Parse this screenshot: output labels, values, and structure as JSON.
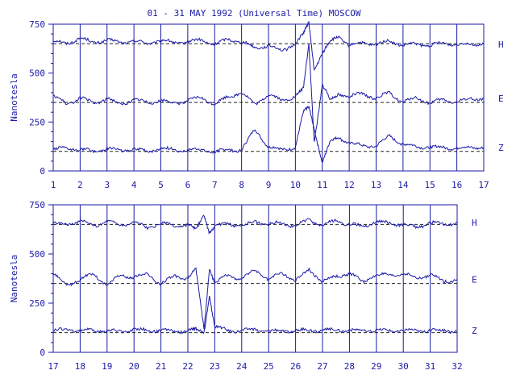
{
  "chart_data": [
    {
      "type": "line",
      "title": "01 - 31 MAY 1992 (Universal Time) MOSCOW",
      "ylabel": "Nanotesla",
      "ylim": [
        0,
        750
      ],
      "yticks": [
        "0",
        "250",
        "500",
        "750"
      ],
      "xlim": [
        1,
        17
      ],
      "xticks": [
        "1",
        "2",
        "3",
        "4",
        "5",
        "6",
        "7",
        "8",
        "9",
        "10",
        "11",
        "12",
        "13",
        "14",
        "15",
        "16",
        "17"
      ],
      "baselines": [
        650,
        350,
        100
      ],
      "series": [
        {
          "name": "H",
          "x": [
            1,
            1.5,
            2,
            2.5,
            3,
            3.5,
            4,
            4.5,
            5,
            5.5,
            6,
            6.5,
            7,
            7.5,
            8,
            8.5,
            9,
            9.5,
            10,
            10.3,
            10.5,
            10.7,
            11,
            11.3,
            11.6,
            12,
            12.5,
            13,
            13.5,
            14,
            14.5,
            15,
            15.5,
            16,
            16.5,
            17
          ],
          "values": [
            665,
            650,
            680,
            655,
            670,
            655,
            665,
            650,
            668,
            655,
            660,
            670,
            645,
            675,
            660,
            630,
            640,
            615,
            650,
            700,
            760,
            520,
            600,
            660,
            690,
            640,
            655,
            645,
            665,
            640,
            650,
            640,
            655,
            645,
            650,
            648
          ]
        },
        {
          "name": "E",
          "x": [
            1,
            1.5,
            2,
            2.5,
            3,
            3.5,
            4,
            4.5,
            5,
            5.5,
            6,
            6.5,
            7,
            7.5,
            8,
            8.5,
            9,
            9.5,
            10,
            10.3,
            10.5,
            10.7,
            11,
            11.3,
            11.6,
            12,
            12.5,
            13,
            13.5,
            14,
            14.5,
            15,
            15.5,
            16,
            16.5,
            17
          ],
          "values": [
            385,
            340,
            375,
            345,
            370,
            340,
            365,
            350,
            360,
            345,
            360,
            375,
            340,
            380,
            400,
            340,
            390,
            360,
            380,
            420,
            650,
            150,
            440,
            360,
            395,
            380,
            395,
            370,
            400,
            350,
            375,
            345,
            365,
            350,
            370,
            370
          ]
        },
        {
          "name": "Z",
          "x": [
            1,
            1.5,
            2,
            2.5,
            3,
            3.5,
            4,
            4.5,
            5,
            5.5,
            6,
            6.5,
            7,
            7.5,
            8,
            8.5,
            9,
            9.5,
            10,
            10.3,
            10.5,
            10.7,
            11,
            11.3,
            11.6,
            12,
            12.5,
            13,
            13.5,
            14,
            14.5,
            15,
            15.5,
            16,
            16.5,
            17
          ],
          "values": [
            110,
            115,
            110,
            100,
            115,
            105,
            110,
            100,
            115,
            108,
            105,
            110,
            95,
            110,
            105,
            215,
            120,
            110,
            120,
            300,
            330,
            220,
            40,
            150,
            175,
            140,
            130,
            125,
            180,
            135,
            125,
            120,
            120,
            115,
            120,
            120
          ]
        }
      ]
    },
    {
      "type": "line",
      "title": "",
      "ylabel": "Nanotesla",
      "ylim": [
        0,
        750
      ],
      "yticks": [
        "0",
        "250",
        "500",
        "750"
      ],
      "xlim": [
        17,
        32
      ],
      "xticks": [
        "17",
        "18",
        "19",
        "20",
        "21",
        "22",
        "23",
        "24",
        "25",
        "26",
        "27",
        "28",
        "29",
        "30",
        "31",
        "32"
      ],
      "baselines": [
        650,
        350,
        100
      ],
      "series": [
        {
          "name": "H",
          "x": [
            17,
            17.5,
            18,
            18.5,
            19,
            19.5,
            20,
            20.5,
            21,
            21.5,
            22,
            22.3,
            22.6,
            22.8,
            23,
            23.5,
            24,
            24.5,
            25,
            25.5,
            26,
            26.5,
            27,
            27.5,
            28,
            28.5,
            29,
            29.5,
            30,
            30.5,
            31,
            31.5,
            32
          ],
          "values": [
            655,
            650,
            670,
            640,
            670,
            645,
            665,
            630,
            660,
            640,
            650,
            620,
            700,
            610,
            640,
            655,
            640,
            665,
            650,
            660,
            640,
            675,
            645,
            670,
            650,
            640,
            665,
            655,
            650,
            635,
            660,
            650,
            660
          ]
        },
        {
          "name": "E",
          "x": [
            17,
            17.5,
            18,
            18.5,
            19,
            19.5,
            20,
            20.5,
            21,
            21.5,
            22,
            22.3,
            22.6,
            22.8,
            23,
            23.5,
            24,
            24.5,
            25,
            25.5,
            26,
            26.5,
            27,
            27.5,
            28,
            28.5,
            29,
            29.5,
            30,
            30.5,
            31,
            31.5,
            32
          ],
          "values": [
            400,
            340,
            370,
            400,
            340,
            395,
            380,
            400,
            345,
            390,
            375,
            420,
            120,
            430,
            350,
            395,
            370,
            420,
            370,
            405,
            365,
            420,
            360,
            385,
            400,
            360,
            395,
            390,
            400,
            375,
            395,
            360,
            370
          ]
        },
        {
          "name": "Z",
          "x": [
            17,
            17.5,
            18,
            18.5,
            19,
            19.5,
            20,
            20.5,
            21,
            21.5,
            22,
            22.3,
            22.6,
            22.8,
            23,
            23.5,
            24,
            24.5,
            25,
            25.5,
            26,
            26.5,
            27,
            27.5,
            28,
            28.5,
            29,
            29.5,
            30,
            30.5,
            31,
            31.5,
            32
          ],
          "values": [
            110,
            115,
            112,
            110,
            110,
            105,
            118,
            110,
            112,
            106,
            110,
            115,
            100,
            290,
            130,
            110,
            112,
            115,
            110,
            108,
            110,
            112,
            110,
            115,
            112,
            110,
            112,
            110,
            112,
            110,
            112,
            110,
            110
          ]
        }
      ]
    }
  ]
}
